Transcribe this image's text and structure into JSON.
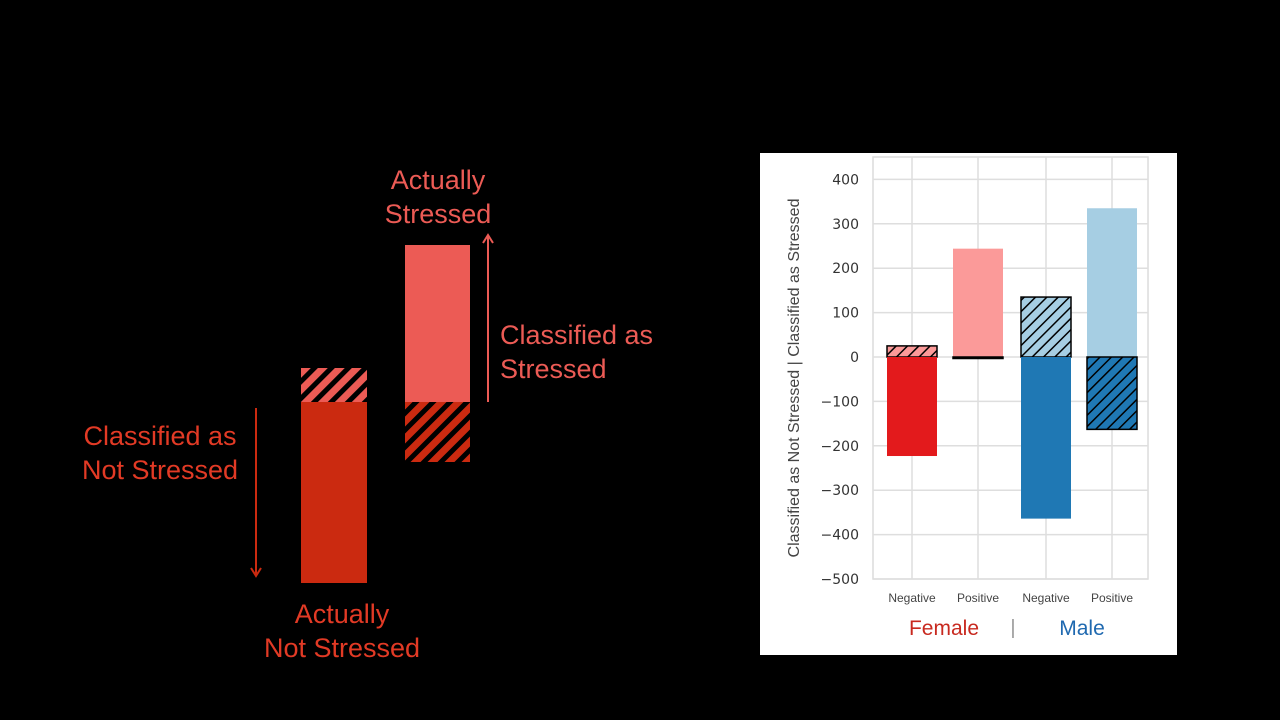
{
  "legend": {
    "actually_stressed": [
      "Actually",
      "Stressed"
    ],
    "classified_stressed": [
      "Classified as",
      "Stressed"
    ],
    "classified_not_stressed": [
      "Classified as",
      "Not Stressed"
    ],
    "actually_not_stressed": [
      "Actually",
      "Not Stressed"
    ]
  },
  "colors": {
    "legend_stressed": "#ec5b55",
    "legend_not_stressed": "#cb2a10",
    "female_dark": "#e31a1c",
    "female_light": "#fb9a99",
    "male_dark": "#1f78b4",
    "male_light": "#a6cee3",
    "female_label": "#c8291f",
    "male_label": "#1f69b0"
  },
  "chart_data": {
    "type": "bar",
    "ylabel": "Classified as Not Stressed  |  Classified as Stressed",
    "ylim": [
      -500,
      450
    ],
    "yticks": [
      400,
      300,
      200,
      100,
      0,
      -100,
      -200,
      -300,
      -400,
      -500
    ],
    "categories": [
      "Negative",
      "Positive",
      "Negative",
      "Positive"
    ],
    "groups": [
      {
        "name": "Female",
        "categories": [
          "Negative",
          "Positive"
        ]
      },
      {
        "name": "Male",
        "categories": [
          "Negative",
          "Positive"
        ]
      }
    ],
    "group_separator": "|",
    "series": [
      {
        "name": "Female Negative",
        "values": {
          "classified_stressed": 25,
          "classified_not_stressed": -223
        },
        "hatched": "classified_stressed"
      },
      {
        "name": "Female Positive",
        "values": {
          "classified_stressed": 244,
          "classified_not_stressed": -2
        },
        "hatched": "classified_not_stressed"
      },
      {
        "name": "Male Negative",
        "values": {
          "classified_stressed": 135,
          "classified_not_stressed": -364
        },
        "hatched": "classified_stressed"
      },
      {
        "name": "Male Positive",
        "values": {
          "classified_stressed": 335,
          "classified_not_stressed": -163
        },
        "hatched": "classified_not_stressed"
      }
    ]
  }
}
